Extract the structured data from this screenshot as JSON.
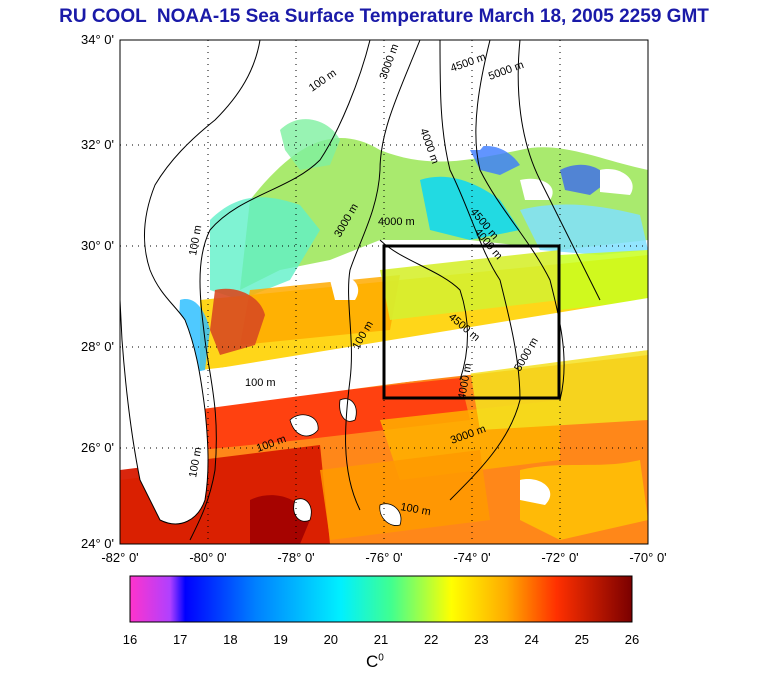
{
  "title": "RU COOL  NOAA-15 Sea Surface Temperature March 18, 2005 2259 GMT",
  "map": {
    "lat_ticks": [
      "34° 0'",
      "32° 0'",
      "30° 0'",
      "28° 0'",
      "26° 0'",
      "24° 0'"
    ],
    "lon_ticks": [
      "-82° 0'",
      "-80° 0'",
      "-78° 0'",
      "-76° 0'",
      "-74° 0'",
      "-72° 0'",
      "-70° 0'"
    ],
    "contour_labels": [
      "100 m",
      "3000 m",
      "4500 m",
      "5000 m",
      "4000 m",
      "100 m",
      "3000 m",
      "4000 m",
      "4500 m",
      "4000 m",
      "100 m",
      "4500 m",
      "5000 m",
      "4000 m",
      "100 m",
      "100 m",
      "100 m",
      "3000 m",
      "100 m"
    ],
    "box_region": {
      "lon": [
        -76,
        -72.5
      ],
      "lat": [
        27,
        30
      ]
    }
  },
  "colorbar": {
    "ticks": [
      "16",
      "17",
      "18",
      "19",
      "20",
      "21",
      "22",
      "23",
      "24",
      "25",
      "26"
    ],
    "unit": "C",
    "unit_sup": "0",
    "colors": [
      "#ff33cc",
      "#7a2aff",
      "#0000ff",
      "#0080ff",
      "#00e6ff",
      "#40ff90",
      "#c8ff20",
      "#ffe600",
      "#ff9900",
      "#ff2a00",
      "#c00000",
      "#800000"
    ]
  }
}
